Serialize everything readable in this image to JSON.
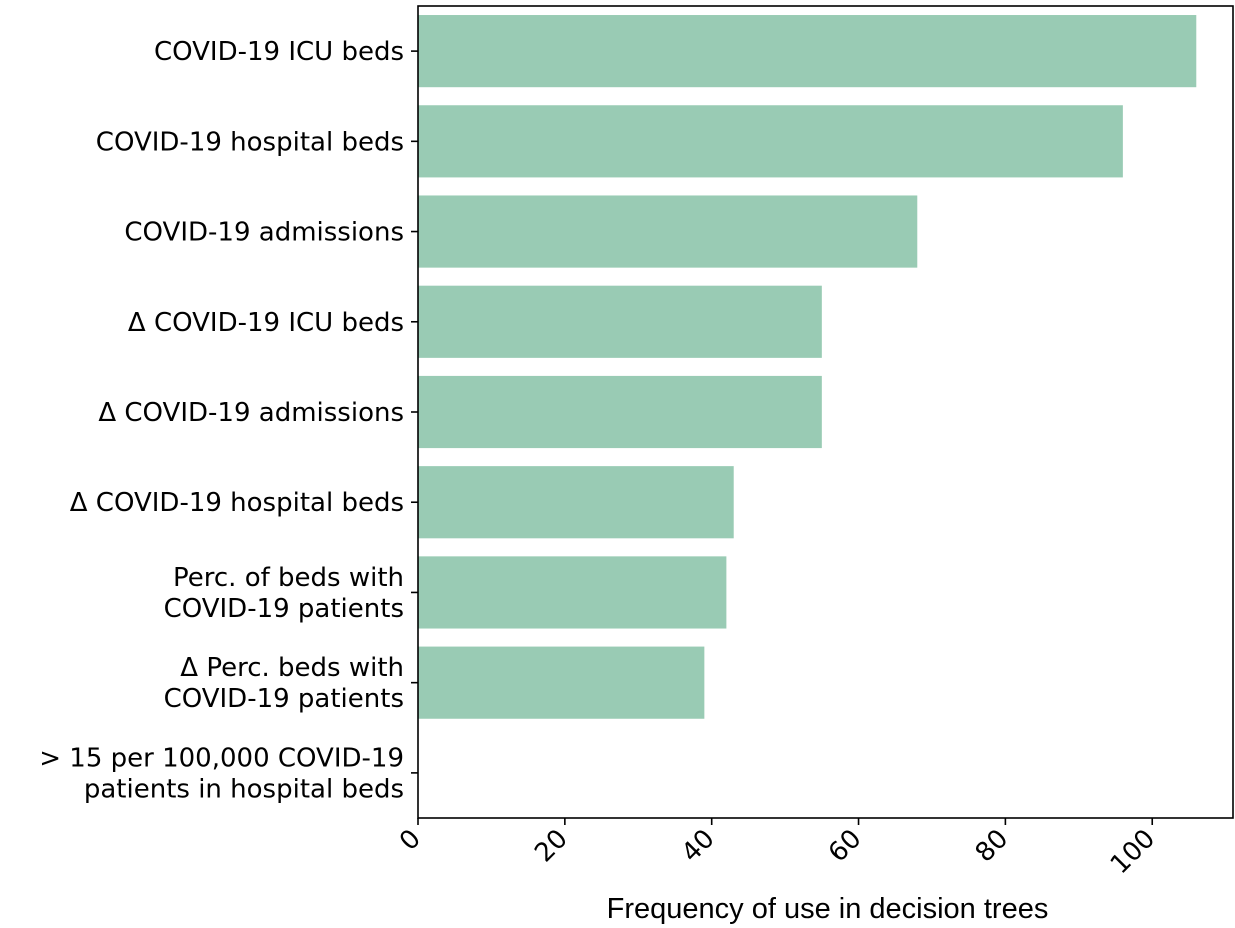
{
  "chart_data": {
    "type": "bar",
    "orientation": "horizontal",
    "categories": [
      "COVID-19 ICU beds",
      "COVID-19 hospital beds",
      "COVID-19  admissions",
      "Δ COVID-19 ICU beds",
      "Δ COVID-19 admissions",
      "Δ COVID-19 hospital beds",
      "Perc. of beds with\nCOVID-19 patients",
      "Δ Perc. beds with\nCOVID-19 patients",
      "> 15 per 100,000 COVID-19\npatients in hospital beds"
    ],
    "values": [
      106,
      96,
      68,
      55,
      55,
      43,
      42,
      39,
      0
    ],
    "xlabel": "Frequency of use in decision trees",
    "ylabel": "",
    "title": "",
    "xlim": [
      0,
      111
    ],
    "xticks": [
      0,
      20,
      40,
      60,
      80,
      100
    ],
    "bar_color": "#99cbb4",
    "grid": false,
    "legend": "none"
  }
}
